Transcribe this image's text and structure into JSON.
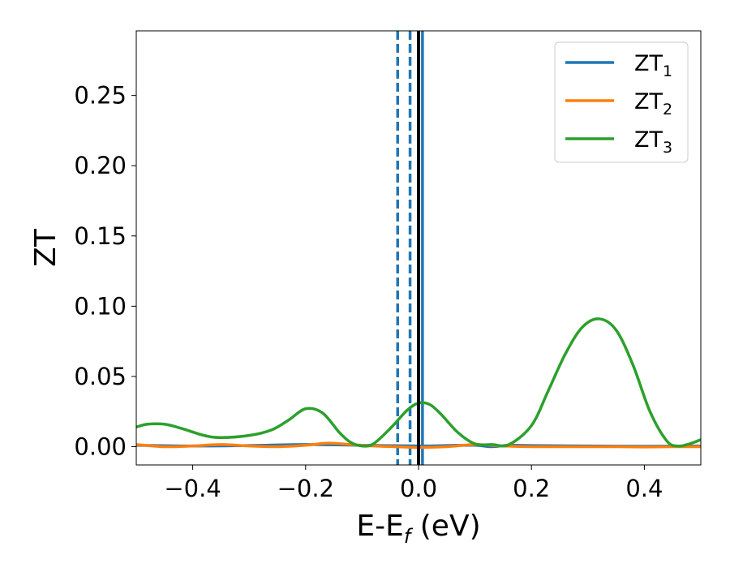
{
  "chart_data": {
    "type": "line",
    "xlabel": "E-E",
    "xlabel_sub": "f",
    "xlabel_unit": " (eV)",
    "ylabel": "ZT",
    "xlim": [
      -0.5,
      0.5
    ],
    "ylim": [
      -0.013,
      0.296
    ],
    "grid": false,
    "legend_position": "top-right",
    "x_ticks": [
      -0.4,
      -0.2,
      0.0,
      0.2,
      0.4
    ],
    "x_tick_labels": [
      "−0.4",
      "−0.2",
      "0.0",
      "0.2",
      "0.4"
    ],
    "y_ticks": [
      0.0,
      0.05,
      0.1,
      0.15,
      0.2,
      0.25
    ],
    "y_tick_labels": [
      "0.00",
      "0.05",
      "0.10",
      "0.15",
      "0.20",
      "0.25"
    ],
    "series": [
      {
        "name": "ZT",
        "name_sub": "1",
        "color": "#1f77b4",
        "x": [
          -0.5,
          -0.4,
          -0.3,
          -0.2,
          -0.1,
          0.0,
          0.05,
          0.1,
          0.13,
          0.16,
          0.2,
          0.3,
          0.4,
          0.5
        ],
        "y": [
          0.001,
          0.0005,
          0.0008,
          0.0015,
          0.001,
          0.0005,
          0.0008,
          0.001,
          0.0,
          0.001,
          0.0008,
          0.0005,
          0.0003,
          0.0005
        ]
      },
      {
        "name": "ZT",
        "name_sub": "2",
        "color": "#ff7f0e",
        "x": [
          -0.5,
          -0.45,
          -0.4,
          -0.35,
          -0.3,
          -0.25,
          -0.2,
          -0.16,
          -0.12,
          -0.08,
          -0.04,
          0.0,
          0.05,
          0.1,
          0.15,
          0.2,
          0.25,
          0.3,
          0.35,
          0.4,
          0.45,
          0.5
        ],
        "y": [
          0.0015,
          0.0,
          0.0005,
          0.0015,
          0.0005,
          0.0,
          0.001,
          0.0025,
          0.0015,
          0.0005,
          0.0,
          -0.0005,
          0.0,
          0.0015,
          0.0005,
          0.0,
          0.0,
          0.0,
          0.0,
          -0.0002,
          0.0,
          0.0
        ]
      },
      {
        "name": "ZT",
        "name_sub": "3",
        "color": "#2ca02c",
        "x": [
          -0.5,
          -0.48,
          -0.45,
          -0.42,
          -0.38,
          -0.35,
          -0.3,
          -0.26,
          -0.23,
          -0.2,
          -0.17,
          -0.14,
          -0.12,
          -0.1,
          -0.08,
          -0.05,
          -0.02,
          0.0,
          0.02,
          0.04,
          0.07,
          0.1,
          0.13,
          0.16,
          0.2,
          0.23,
          0.26,
          0.29,
          0.32,
          0.35,
          0.38,
          0.41,
          0.44,
          0.46,
          0.48,
          0.5
        ],
        "y": [
          0.014,
          0.016,
          0.016,
          0.013,
          0.008,
          0.0065,
          0.008,
          0.012,
          0.019,
          0.027,
          0.024,
          0.01,
          0.003,
          0.0005,
          0.002,
          0.013,
          0.026,
          0.031,
          0.03,
          0.023,
          0.01,
          0.002,
          0.0015,
          0.0015,
          0.015,
          0.04,
          0.066,
          0.085,
          0.091,
          0.083,
          0.058,
          0.025,
          0.004,
          0.0005,
          0.002,
          0.005
        ]
      }
    ],
    "vlines": [
      {
        "x": -0.037,
        "style": "dashed",
        "color": "#1f77b4"
      },
      {
        "x": -0.015,
        "style": "dashed",
        "color": "#1f77b4"
      },
      {
        "x": 0.007,
        "style": "solid",
        "color": "#1f77b4"
      },
      {
        "x": 0.0,
        "style": "solid",
        "color": "#000000"
      }
    ]
  }
}
